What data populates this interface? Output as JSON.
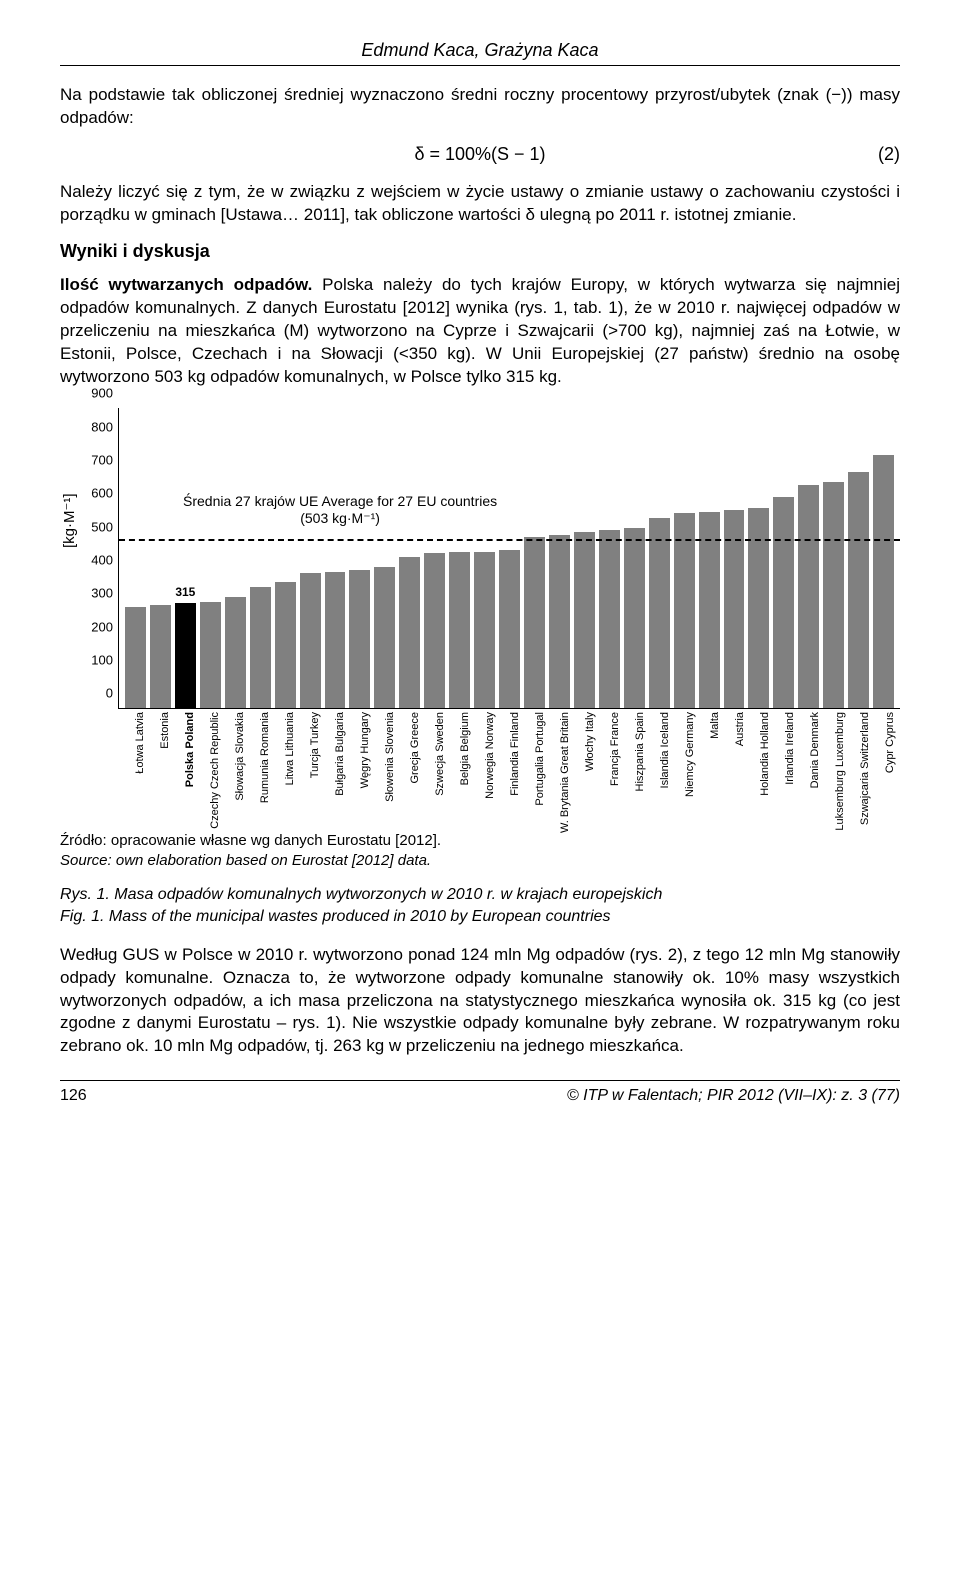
{
  "authors": "Edmund Kaca, Grażyna Kaca",
  "para1": "Na podstawie tak obliczonej średniej wyznaczono średni roczny procentowy przyrost/ubytek (znak (−)) masy odpadów:",
  "formula": "δ = 100%(S − 1)",
  "formula_num": "(2)",
  "para2": "Należy liczyć się z tym, że w związku z wejściem w życie ustawy o zmianie ustawy o zachowaniu czystości i porządku w gminach [Ustawa… 2011], tak obliczone wartości δ ulegną po 2011 r. istotnej zmianie.",
  "subheading": "Wyniki i dyskusja",
  "para3_bold": "Ilość wytwarzanych odpadów.",
  "para3_rest": " Polska należy do tych krajów Europy, w których wytwarza się najmniej odpadów komunalnych. Z danych Eurostatu [2012] wynika (rys. 1, tab. 1), że w 2010 r. najwięcej odpadów w przeliczeniu na mieszkańca (M) wytworzono na Cyprze i Szwajcarii (>700 kg), najmniej zaś na Łotwie, w Estonii, Polsce, Czechach i na Słowacji (<350 kg). W Unii Europejskiej (27 państw) średnio na osobę wytworzono 503 kg odpadów komunalnych, w Polsce tylko 315 kg.",
  "chart": {
    "type": "bar",
    "ylabel": "[kg·M⁻¹]",
    "ymax": 900,
    "ytick_step": 100,
    "avg_value": 503,
    "avg_label_1": "Średnia 27 krajów UE  Average for 27 EU countries",
    "avg_label_2": "(503 kg·M⁻¹)",
    "poland_value_label": "315",
    "bar_color": "#808080",
    "poland_bar_color": "#000000",
    "background_color": "#ffffff",
    "countries": [
      {
        "label": "Łotwa Latvia",
        "value": 305,
        "highlight": false
      },
      {
        "label": "Estonia",
        "value": 310,
        "highlight": false
      },
      {
        "label": "Polska Poland",
        "value": 315,
        "highlight": true
      },
      {
        "label": "Czechy Czech Republic",
        "value": 320,
        "highlight": false
      },
      {
        "label": "Słowacja Slovakia",
        "value": 335,
        "highlight": false
      },
      {
        "label": "Rumunia Romania",
        "value": 365,
        "highlight": false
      },
      {
        "label": "Litwa Lithuania",
        "value": 380,
        "highlight": false
      },
      {
        "label": "Turcja Turkey",
        "value": 405,
        "highlight": false
      },
      {
        "label": "Bułgaria Bulgaria",
        "value": 410,
        "highlight": false
      },
      {
        "label": "Węgry Hungary",
        "value": 415,
        "highlight": false
      },
      {
        "label": "Słowenia Slovenia",
        "value": 425,
        "highlight": false
      },
      {
        "label": "Grecja Greece",
        "value": 455,
        "highlight": false
      },
      {
        "label": "Szwecja Sweden",
        "value": 465,
        "highlight": false
      },
      {
        "label": "Belgia Belgium",
        "value": 470,
        "highlight": false
      },
      {
        "label": "Norwegia Norway",
        "value": 470,
        "highlight": false
      },
      {
        "label": "Finlandia Finland",
        "value": 475,
        "highlight": false
      },
      {
        "label": "Portugalia Portugal",
        "value": 515,
        "highlight": false
      },
      {
        "label": "W. Brytania Great Britain",
        "value": 520,
        "highlight": false
      },
      {
        "label": "Włochy Italy",
        "value": 530,
        "highlight": false
      },
      {
        "label": "Francja France",
        "value": 535,
        "highlight": false
      },
      {
        "label": "Hiszpania Spain",
        "value": 540,
        "highlight": false
      },
      {
        "label": "Islandia Iceland",
        "value": 570,
        "highlight": false
      },
      {
        "label": "Niemcy Germany",
        "value": 585,
        "highlight": false
      },
      {
        "label": "Malta",
        "value": 590,
        "highlight": false
      },
      {
        "label": "Austria",
        "value": 595,
        "highlight": false
      },
      {
        "label": "Holandia Holland",
        "value": 600,
        "highlight": false
      },
      {
        "label": "Irlandia Ireland",
        "value": 635,
        "highlight": false
      },
      {
        "label": "Dania Denmark",
        "value": 670,
        "highlight": false
      },
      {
        "label": "Luksemburg Luxemburg",
        "value": 680,
        "highlight": false
      },
      {
        "label": "Szwajcaria Switzerland",
        "value": 710,
        "highlight": false
      },
      {
        "label": "Cypr Cyprus",
        "value": 760,
        "highlight": false
      }
    ]
  },
  "source_pl": "Źródło: opracowanie własne wg danych Eurostatu [2012].",
  "source_en": "Source: own elaboration based on Eurostat [2012] data.",
  "caption_pl": "Rys. 1. Masa odpadów komunalnych wytworzonych w 2010 r. w krajach europejskich",
  "caption_en": "Fig. 1. Mass of the municipal wastes produced in 2010 by European countries",
  "para4": "Według GUS w Polsce w 2010 r. wytworzono ponad 124 mln Mg odpadów (rys. 2), z tego 12 mln Mg stanowiły odpady komunalne. Oznacza to, że wytworzone odpady komunalne stanowiły ok. 10% masy wszystkich wytworzonych odpadów, a ich masa przeliczona na statystycznego mieszkańca wynosiła ok. 315 kg (co jest zgodne z danymi Eurostatu – rys. 1). Nie wszystkie odpady komunalne były zebrane. W rozpatrywanym roku zebrano ok. 10 mln Mg odpadów, tj. 263 kg w przeliczeniu na jednego mieszkańca.",
  "page_num": "126",
  "footer_right": "© ITP w Falentach; PIR 2012 (VII–IX): z. 3 (77)"
}
